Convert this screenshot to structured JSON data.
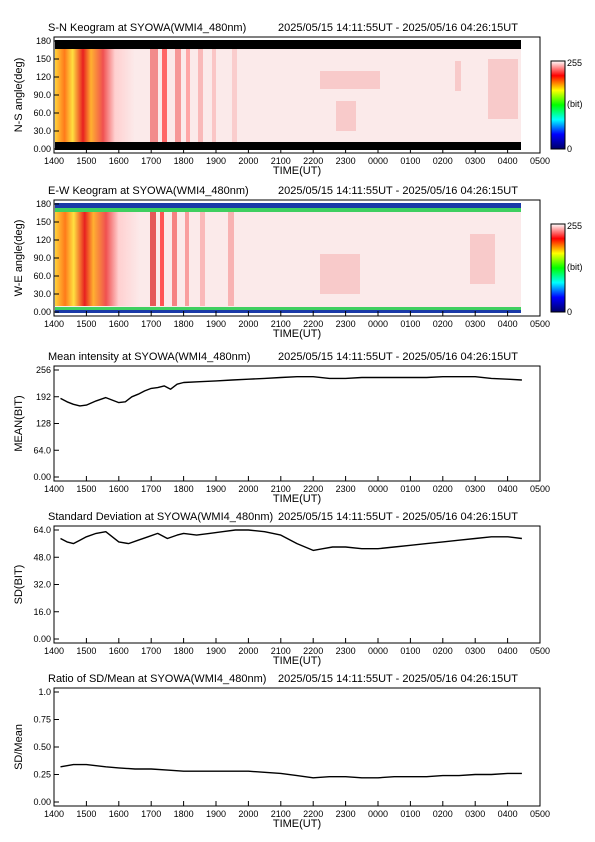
{
  "header": {
    "time_range": "2025/05/15 14:11:55UT - 2025/05/16 04:26:15UT"
  },
  "colors": {
    "line": "#000000",
    "colorbar": [
      "#000066",
      "#0000ff",
      "#00ffff",
      "#00ff00",
      "#ffff00",
      "#ff0000",
      "#ffffff"
    ]
  },
  "x_axis": {
    "label": "TIME(UT)",
    "ticks": [
      "1400",
      "1500",
      "1600",
      "1700",
      "1800",
      "1900",
      "2000",
      "2100",
      "2200",
      "2300",
      "0000",
      "0100",
      "0200",
      "0300",
      "0400",
      "0500"
    ]
  },
  "keograms": [
    {
      "title": "S-N Keogram at SYOWA(WMI4_480nm)",
      "ylabel": "N-S angle(deg)",
      "yticks": [
        "0.00",
        "30.0",
        "60.0",
        "90.0",
        "120",
        "150",
        "180"
      ],
      "colorbar": {
        "max": "255",
        "unit": "(bit)",
        "min": "0"
      }
    },
    {
      "title": "E-W Keogram at SYOWA(WMI4_480nm)",
      "ylabel": "W-E angle(deg)",
      "yticks": [
        "0.00",
        "30.0",
        "60.0",
        "90.0",
        "120",
        "150",
        "180"
      ],
      "colorbar": {
        "max": "255",
        "unit": "(bit)",
        "min": "0"
      }
    }
  ],
  "chart_data": [
    {
      "type": "line",
      "title": "Mean intensity at SYOWA(WMI4_480nm)",
      "xlabel": "TIME(UT)",
      "ylabel": "MEAN(BIT)",
      "ylim": [
        0,
        256
      ],
      "yticks": [
        "0.00",
        "64.0",
        "128",
        "192",
        "256"
      ],
      "xlim": [
        14.0,
        29.0
      ],
      "x": [
        14.2,
        14.4,
        14.6,
        14.8,
        15.0,
        15.3,
        15.6,
        15.8,
        16.0,
        16.2,
        16.4,
        16.6,
        16.8,
        17.0,
        17.2,
        17.4,
        17.6,
        17.8,
        18.0,
        18.5,
        19.0,
        19.5,
        20.0,
        20.5,
        21.0,
        21.5,
        22.0,
        22.5,
        23.0,
        23.5,
        24.0,
        24.5,
        25.0,
        25.5,
        26.0,
        26.5,
        27.0,
        27.5,
        28.0,
        28.44
      ],
      "values": [
        188,
        180,
        174,
        170,
        172,
        182,
        190,
        184,
        178,
        180,
        192,
        198,
        206,
        212,
        214,
        218,
        210,
        222,
        226,
        228,
        230,
        232,
        234,
        236,
        238,
        240,
        240,
        236,
        236,
        238,
        238,
        238,
        238,
        238,
        240,
        240,
        240,
        236,
        234,
        232
      ]
    },
    {
      "type": "line",
      "title": "Standard Deviation at SYOWA(WMI4_480nm)",
      "xlabel": "TIME(UT)",
      "ylabel": "SD(BIT)",
      "ylim": [
        0,
        64
      ],
      "yticks": [
        "0.00",
        "16.0",
        "32.0",
        "48.0",
        "64.0"
      ],
      "xlim": [
        14.0,
        29.0
      ],
      "x": [
        14.2,
        14.4,
        14.6,
        14.8,
        15.0,
        15.3,
        15.6,
        15.8,
        16.0,
        16.3,
        16.6,
        16.9,
        17.2,
        17.5,
        17.8,
        18.0,
        18.4,
        18.8,
        19.2,
        19.6,
        20.0,
        20.5,
        21.0,
        21.5,
        22.0,
        22.3,
        22.6,
        23.0,
        23.5,
        24.0,
        24.5,
        25.0,
        25.5,
        26.0,
        26.5,
        27.0,
        27.5,
        28.0,
        28.44
      ],
      "values": [
        59,
        57,
        56,
        58,
        60,
        62,
        63,
        60,
        57,
        56,
        58,
        60,
        62,
        59,
        61,
        62,
        61,
        62,
        63,
        64,
        64,
        63,
        61,
        56,
        52,
        53,
        54,
        54,
        53,
        53,
        54,
        55,
        56,
        57,
        58,
        59,
        60,
        60,
        59
      ]
    },
    {
      "type": "line",
      "title": "Ratio of SD/Mean at SYOWA(WMI4_480nm)",
      "xlabel": "TIME(UT)",
      "ylabel": "SD/Mean",
      "ylim": [
        0,
        1
      ],
      "yticks": [
        "0.00",
        "0.25",
        "0.50",
        "0.75",
        "1.0"
      ],
      "xlim": [
        14.0,
        29.0
      ],
      "x": [
        14.2,
        14.4,
        14.6,
        14.8,
        15.0,
        15.3,
        15.6,
        16.0,
        16.5,
        17.0,
        17.5,
        18.0,
        18.5,
        19.0,
        19.5,
        20.0,
        20.5,
        21.0,
        21.5,
        22.0,
        22.5,
        23.0,
        23.5,
        24.0,
        24.5,
        25.0,
        25.5,
        26.0,
        26.5,
        27.0,
        27.5,
        28.0,
        28.44
      ],
      "values": [
        0.32,
        0.33,
        0.34,
        0.34,
        0.34,
        0.33,
        0.32,
        0.31,
        0.3,
        0.3,
        0.29,
        0.28,
        0.28,
        0.28,
        0.28,
        0.28,
        0.27,
        0.26,
        0.24,
        0.22,
        0.23,
        0.23,
        0.22,
        0.22,
        0.23,
        0.23,
        0.23,
        0.24,
        0.24,
        0.25,
        0.25,
        0.26,
        0.26
      ]
    }
  ]
}
